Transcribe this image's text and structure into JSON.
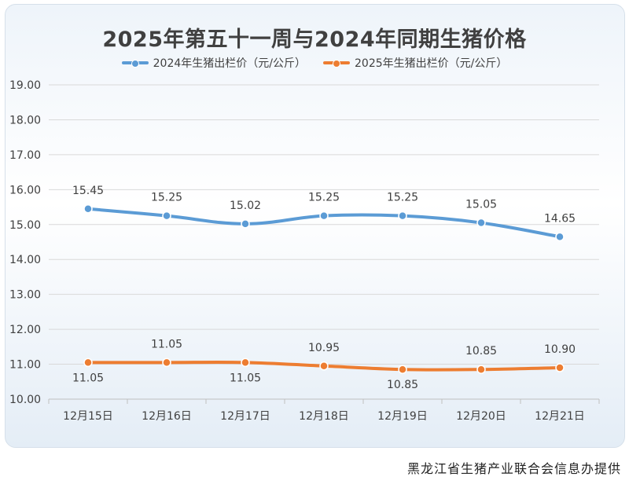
{
  "chart_data": {
    "type": "line",
    "title": "2025年第五十一周与2024年同期生猪价格",
    "categories": [
      "12月15日",
      "12月16日",
      "12月17日",
      "12月18日",
      "12月19日",
      "12月20日",
      "12月21日"
    ],
    "series": [
      {
        "name": "2024年生猪出栏价（元/公斤）",
        "color": "#5b9bd5",
        "values": [
          15.45,
          15.25,
          15.02,
          15.25,
          15.25,
          15.05,
          14.65
        ],
        "labels": [
          "15.45",
          "15.25",
          "15.02",
          "15.25",
          "15.25",
          "15.05",
          "14.65"
        ],
        "label_positions": [
          "above",
          "above",
          "above",
          "above",
          "above",
          "above",
          "above"
        ]
      },
      {
        "name": "2025年生猪出栏价（元/公斤）",
        "color": "#ed7d31",
        "values": [
          11.05,
          11.05,
          11.05,
          10.95,
          10.85,
          10.85,
          10.9
        ],
        "labels": [
          "11.05",
          "11.05",
          "11.05",
          "10.95",
          "10.85",
          "10.85",
          "10.90"
        ],
        "label_positions": [
          "below",
          "above",
          "below",
          "above",
          "below",
          "above",
          "above"
        ]
      }
    ],
    "y_ticks": [
      "19.00",
      "18.00",
      "17.00",
      "16.00",
      "15.00",
      "14.00",
      "13.00",
      "12.00",
      "11.00",
      "10.00"
    ],
    "ylim": [
      10,
      19
    ],
    "grid": true,
    "legend_position": "top-center"
  },
  "footer": {
    "credit": "黑龙江省生猪产业联合会信息办提供"
  }
}
